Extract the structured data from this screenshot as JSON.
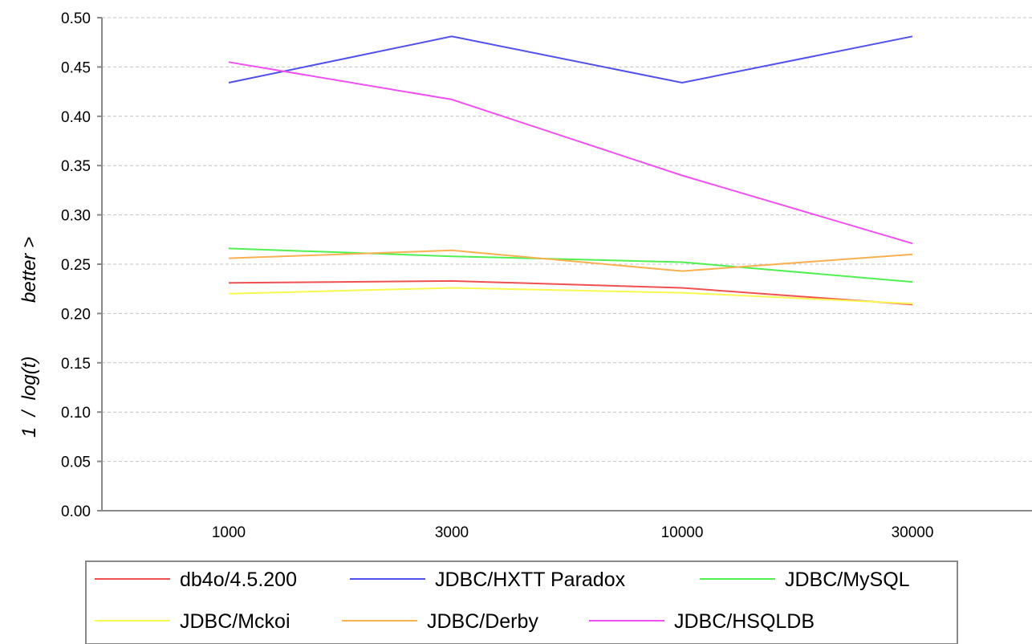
{
  "chart_data": {
    "type": "line",
    "ylabel": "1  /  log(t)          better >",
    "categories": [
      "1000",
      "3000",
      "10000",
      "30000"
    ],
    "ylim": [
      0,
      0.5
    ],
    "yticks": [
      "0.00",
      "0.05",
      "0.10",
      "0.15",
      "0.20",
      "0.25",
      "0.30",
      "0.35",
      "0.40",
      "0.45",
      "0.50"
    ],
    "grid": true,
    "legend_position": "bottom",
    "series": [
      {
        "name": "db4o/4.5.200",
        "color": "#f05050",
        "values": [
          0.231,
          0.233,
          0.226,
          0.209
        ]
      },
      {
        "name": "JDBC/HXTT Paradox",
        "color": "#5050f0",
        "values": [
          0.434,
          0.481,
          0.434,
          0.481
        ]
      },
      {
        "name": "JDBC/MySQL",
        "color": "#50f050",
        "values": [
          0.266,
          0.258,
          0.252,
          0.232
        ]
      },
      {
        "name": "JDBC/Mckoi",
        "color": "#f8f850",
        "values": [
          0.22,
          0.226,
          0.221,
          0.21
        ]
      },
      {
        "name": "JDBC/Derby",
        "color": "#f8b050",
        "values": [
          0.256,
          0.264,
          0.243,
          0.26
        ]
      },
      {
        "name": "JDBC/HSQLDB",
        "color": "#f050f0",
        "values": [
          0.455,
          0.417,
          0.34,
          0.271
        ]
      }
    ]
  }
}
